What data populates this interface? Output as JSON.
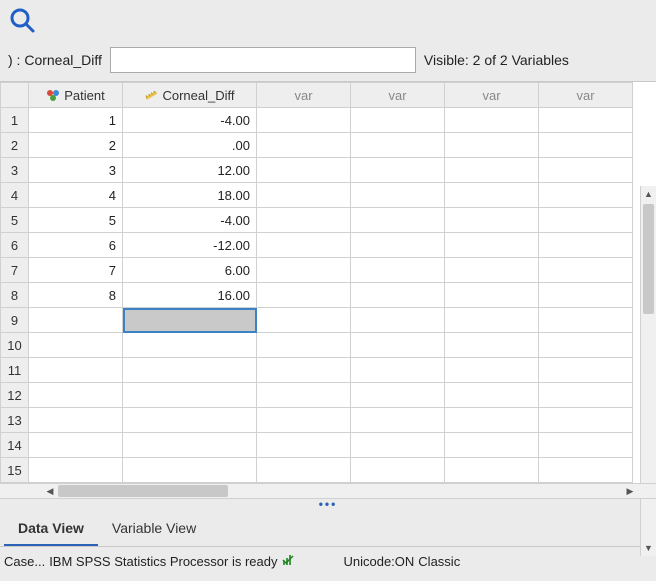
{
  "toolbar": {
    "search_icon_color": "#1f5fc6"
  },
  "info_bar": {
    "cell_label": ") : Corneal_Diff",
    "goto_value": "",
    "visible_text": "Visible: 2 of 2 Variables"
  },
  "columns": {
    "patient": {
      "label": "Patient",
      "icon": "nominal-icon"
    },
    "corneal": {
      "label": "Corneal_Diff",
      "icon": "scale-icon"
    },
    "var": "var"
  },
  "rows": [
    {
      "n": "1",
      "patient": "1",
      "corneal": "-4.00"
    },
    {
      "n": "2",
      "patient": "2",
      "corneal": ".00"
    },
    {
      "n": "3",
      "patient": "3",
      "corneal": "12.00"
    },
    {
      "n": "4",
      "patient": "4",
      "corneal": "18.00"
    },
    {
      "n": "5",
      "patient": "5",
      "corneal": "-4.00"
    },
    {
      "n": "6",
      "patient": "6",
      "corneal": "-12.00"
    },
    {
      "n": "7",
      "patient": "7",
      "corneal": "6.00"
    },
    {
      "n": "8",
      "patient": "8",
      "corneal": "16.00"
    }
  ],
  "empty_rows": [
    "9",
    "10",
    "11",
    "12",
    "13",
    "14",
    "15"
  ],
  "selected": {
    "row": "9",
    "col": "corneal"
  },
  "tabs": {
    "data_view": "Data View",
    "variable_view": "Variable View"
  },
  "status": {
    "left": "Case...",
    "processor": "IBM SPSS Statistics Processor is ready",
    "unicode": "Unicode:ON",
    "mode": "Classic"
  }
}
